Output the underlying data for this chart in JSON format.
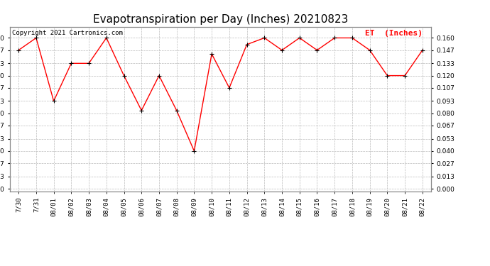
{
  "title": "Evapotranspiration per Day (Inches) 20210823",
  "copyright": "Copyright 2021 Cartronics.com",
  "legend_label": "ET  (Inches)",
  "x_labels": [
    "7/30",
    "7/31",
    "08/01",
    "08/02",
    "08/03",
    "08/04",
    "08/05",
    "08/06",
    "08/07",
    "08/08",
    "08/09",
    "08/10",
    "08/11",
    "08/12",
    "08/13",
    "08/14",
    "08/15",
    "08/16",
    "08/17",
    "08/18",
    "08/19",
    "08/20",
    "08/21",
    "08/22"
  ],
  "y_values": [
    0.147,
    0.16,
    0.093,
    0.133,
    0.133,
    0.16,
    0.12,
    0.083,
    0.12,
    0.083,
    0.04,
    0.143,
    0.107,
    0.153,
    0.16,
    0.147,
    0.16,
    0.147,
    0.16,
    0.16,
    0.147,
    0.12,
    0.12,
    0.147
  ],
  "y_ticks": [
    0.0,
    0.013,
    0.027,
    0.04,
    0.053,
    0.067,
    0.08,
    0.093,
    0.107,
    0.12,
    0.133,
    0.147,
    0.16
  ],
  "line_color": "red",
  "marker_color": "black",
  "grid_color": "#bbbbbb",
  "background_color": "white",
  "title_fontsize": 11,
  "copyright_fontsize": 6.5,
  "legend_fontsize": 8,
  "tick_fontsize": 6.5,
  "ylim": [
    -0.003,
    0.172
  ]
}
